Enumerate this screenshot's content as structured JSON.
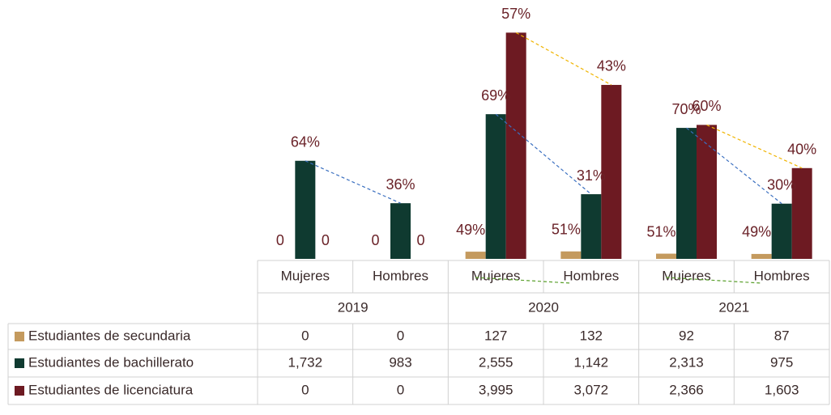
{
  "chart_data": {
    "type": "bar",
    "groups": [
      "2019",
      "2020",
      "2021"
    ],
    "categories": [
      "Mujeres",
      "Hombres",
      "Mujeres",
      "Hombres",
      "Mujeres",
      "Hombres"
    ],
    "ylim": [
      0,
      4000
    ],
    "series": [
      {
        "name": "Estudiantes de secundaria",
        "color": "#c49a5e",
        "values": [
          0,
          0,
          127,
          132,
          92,
          87
        ],
        "labels": [
          "0",
          "0",
          "49%",
          "51%",
          "51%",
          "49%"
        ],
        "trend_color": "#5aa02c"
      },
      {
        "name": "Estudiantes de bachillerato",
        "color": "#0f3a30",
        "values": [
          1732,
          983,
          2555,
          1142,
          2313,
          975
        ],
        "labels": [
          "64%",
          "36%",
          "69%",
          "31%",
          "70%",
          "30%"
        ],
        "trend_color": "#3a6fc0"
      },
      {
        "name": "Estudiantes de licenciatura",
        "color": "#6d1a22",
        "values": [
          0,
          0,
          3995,
          3072,
          2366,
          1603
        ],
        "labels": [
          "0",
          "0",
          "57%",
          "43%",
          "60%",
          "40%"
        ],
        "trend_color": "#f0b400"
      }
    ],
    "table_values": [
      [
        "0",
        "0",
        "127",
        "132",
        "92",
        "87"
      ],
      [
        "1,732",
        "983",
        "2,555",
        "1,142",
        "2,313",
        "975"
      ],
      [
        "0",
        "0",
        "3,995",
        "3,072",
        "2,366",
        "1,603"
      ]
    ]
  }
}
